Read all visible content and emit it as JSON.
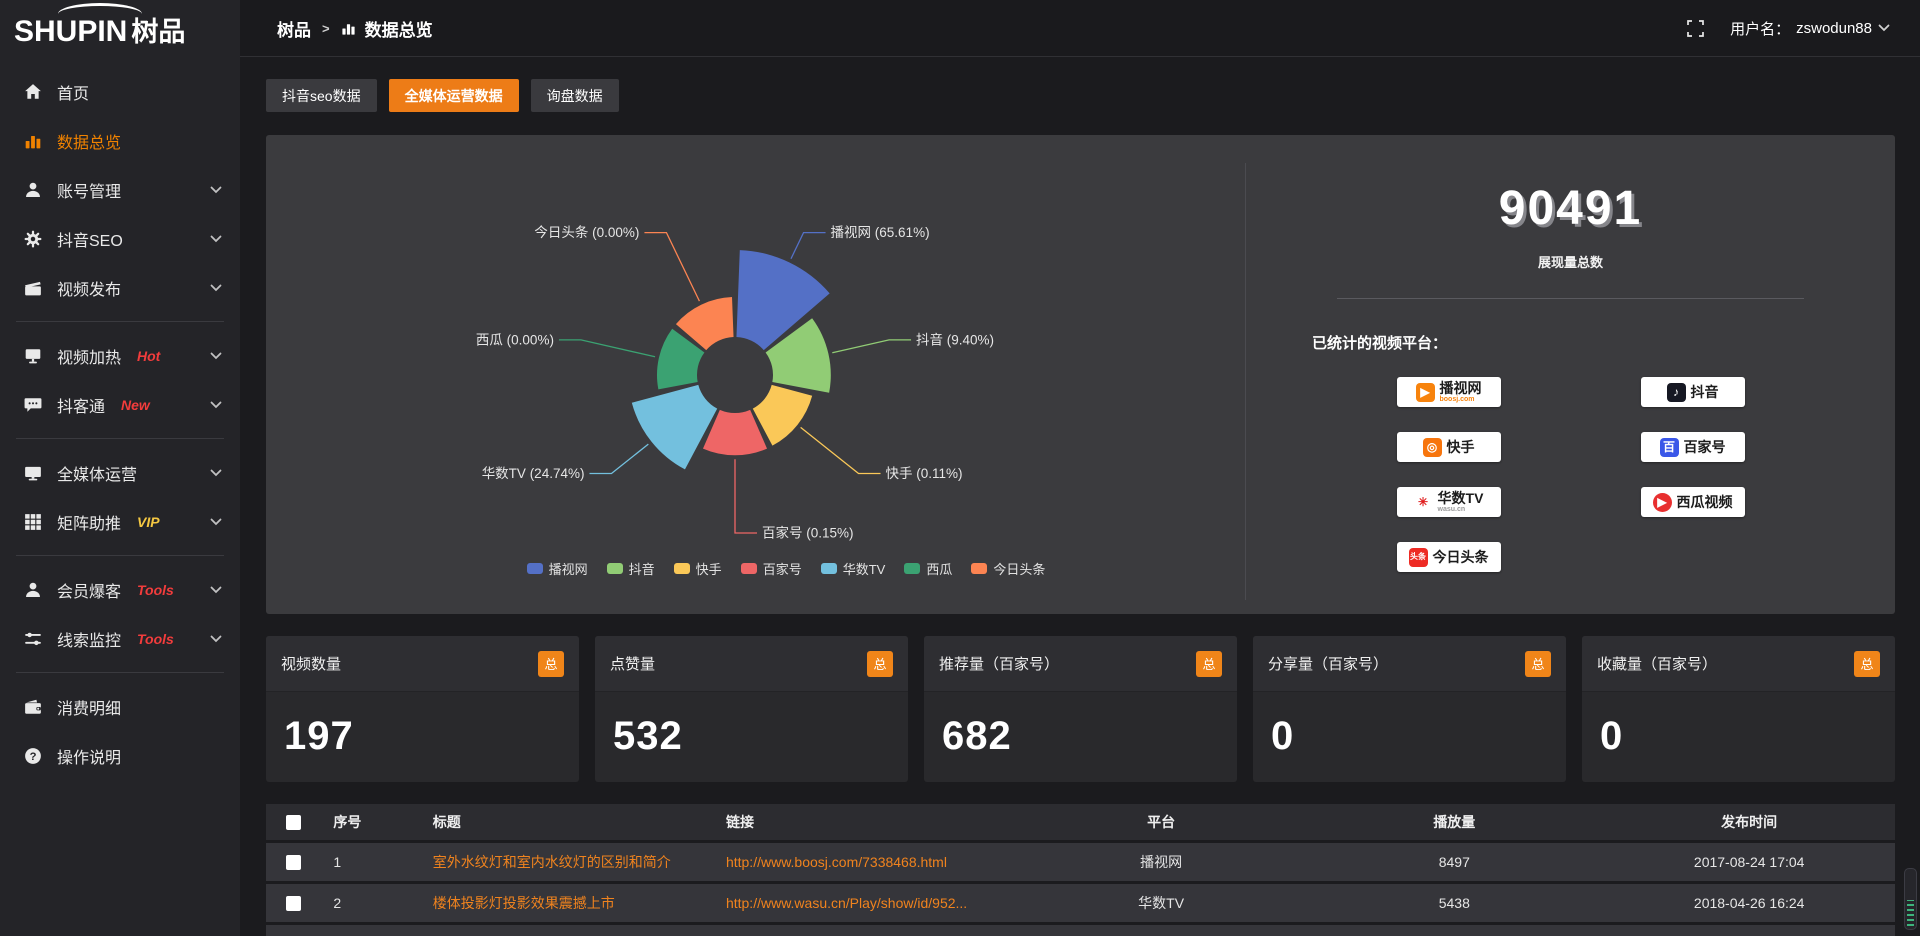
{
  "app": {
    "logo_en": "SHUPIN",
    "logo_cn": "树品",
    "username_label": "用户名：",
    "username": "zswodun88"
  },
  "breadcrumb": {
    "separator": ">",
    "items": [
      {
        "icon": "trend-square-icon",
        "label": "树品"
      },
      {
        "icon": "bar-chart-icon",
        "label": "数据总览"
      }
    ]
  },
  "sidebar": {
    "items": [
      {
        "id": "home",
        "icon": "home-icon",
        "label": "首页"
      },
      {
        "id": "data-overview",
        "icon": "bar-chart-icon",
        "label": "数据总览",
        "active": true
      },
      {
        "id": "account-management",
        "icon": "user-icon",
        "label": "账号管理",
        "chevron": true
      },
      {
        "id": "douyin-seo",
        "icon": "gear-icon",
        "label": "抖音SEO",
        "chevron": true
      },
      {
        "id": "video-publish",
        "icon": "video-icon",
        "label": "视频发布",
        "chevron": true,
        "divider_after": true
      },
      {
        "id": "video-heating",
        "icon": "display-icon",
        "label": "视频加热",
        "tag": "Hot",
        "tag_color": "#f23c3c",
        "chevron": true
      },
      {
        "id": "doketong",
        "icon": "chat-icon",
        "label": "抖客通",
        "tag": "New",
        "tag_color": "#f23c3c",
        "chevron": true,
        "divider_after": true
      },
      {
        "id": "media-operation",
        "icon": "monitor-icon",
        "label": "全媒体运营",
        "chevron": true
      },
      {
        "id": "matrix-boost",
        "icon": "grid-icon",
        "label": "矩阵助推",
        "tag": "VIP",
        "tag_color": "#f5c842",
        "chevron": true,
        "divider_after": true
      },
      {
        "id": "member-burst",
        "icon": "member-icon",
        "label": "会员爆客",
        "tag": "Tools",
        "tag_color": "#f23c3c",
        "chevron": true
      },
      {
        "id": "clue-monitor",
        "icon": "sliders-icon",
        "label": "线索监控",
        "tag": "Tools",
        "tag_color": "#f23c3c",
        "chevron": true,
        "divider_after": true
      },
      {
        "id": "consumption-detail",
        "icon": "wallet-icon",
        "label": "消费明细"
      },
      {
        "id": "operation-guide",
        "icon": "question-icon",
        "label": "操作说明"
      }
    ]
  },
  "tabs": [
    {
      "id": "douyin-seo-data",
      "label": "抖音seo数据",
      "active": false
    },
    {
      "id": "media-operation-data",
      "label": "全媒体运营数据",
      "active": true
    },
    {
      "id": "inquiry-data",
      "label": "询盘数据",
      "active": false
    }
  ],
  "chart_data": {
    "type": "pie",
    "variant": "nightingale-rose",
    "title": "",
    "legend_position": "bottom",
    "label_format": "{name} ({pct}%)",
    "items": [
      {
        "name": "播视网",
        "pct": 65.61,
        "pct_label": "65.61",
        "color": "#5470c6"
      },
      {
        "name": "抖音",
        "pct": 9.4,
        "pct_label": "9.40",
        "color": "#91cc75"
      },
      {
        "name": "快手",
        "pct": 0.11,
        "pct_label": "0.11",
        "color": "#fac858"
      },
      {
        "name": "百家号",
        "pct": 0.15,
        "pct_label": "0.15",
        "color": "#ee6666"
      },
      {
        "name": "华数TV",
        "pct": 24.74,
        "pct_label": "24.74",
        "color": "#73c0de"
      },
      {
        "name": "西瓜",
        "pct": 0.0,
        "pct_label": "0.00",
        "color": "#3ba272"
      },
      {
        "name": "今日头条",
        "pct": 0.0,
        "pct_label": "0.00",
        "color": "#fc8452"
      }
    ]
  },
  "summary": {
    "total_value": "90491",
    "total_label": "展现量总数",
    "platforms_label": "已统计的视频平台：",
    "platforms": [
      {
        "id": "boosj",
        "name": "播视网",
        "sub": "boosj.com",
        "sub_color": "#f7830d",
        "logo_bg": "#f7830d",
        "logo_color": "#ffffff",
        "logo_glyph": "▶"
      },
      {
        "id": "douyin",
        "name": "抖音",
        "logo_bg": "#161823",
        "logo_color": "#ffffff",
        "logo_glyph": "♪"
      },
      {
        "id": "kuaishou",
        "name": "快手",
        "logo_bg": "#f7750d",
        "logo_color": "#ffffff",
        "logo_glyph": "◎"
      },
      {
        "id": "baijiahao",
        "name": "百家号",
        "logo_bg": "#3a57e8",
        "logo_color": "#ffffff",
        "logo_glyph": "百"
      },
      {
        "id": "wasu",
        "name": "华数TV",
        "sub": "wasu.cn",
        "sub_color": "#9a9a9a",
        "logo_bg": "#ffffff",
        "logo_color": "#e02020",
        "logo_glyph": "✳"
      },
      {
        "id": "xigua",
        "name": "西瓜视频",
        "logo_bg": "#e82f2f",
        "logo_color": "#ffffff",
        "logo_glyph": "▶",
        "logo_round": true
      },
      {
        "id": "toutiao",
        "name": "今日头条",
        "logo_bg": "#ee2b24",
        "logo_color": "#ffffff",
        "logo_glyph": "头条",
        "logo_small": true
      }
    ]
  },
  "stat_cards": [
    {
      "label": "视频数量",
      "badge": "总",
      "value": "197"
    },
    {
      "label": "点赞量",
      "badge": "总",
      "value": "532"
    },
    {
      "label": "推荐量（百家号）",
      "badge": "总",
      "value": "682"
    },
    {
      "label": "分享量（百家号）",
      "badge": "总",
      "value": "0"
    },
    {
      "label": "收藏量（百家号）",
      "badge": "总",
      "value": "0"
    }
  ],
  "table": {
    "headers": [
      "序号",
      "标题",
      "链接",
      "平台",
      "播放量",
      "发布时间"
    ],
    "rows": [
      {
        "no": "1",
        "title": "室外水纹灯和室内水纹灯的区别和简介",
        "link": "http://www.boosj.com/7338468.html",
        "platform": "播视网",
        "plays": "8497",
        "time": "2017-08-24 17:04"
      },
      {
        "no": "2",
        "title": "楼体投影灯投影效果震撼上市",
        "link": "http://www.wasu.cn/Play/show/id/952...",
        "platform": "华数TV",
        "plays": "5438",
        "time": "2018-04-26 16:24"
      },
      {
        "no": "",
        "title": "",
        "link": "",
        "platform": "",
        "plays": "",
        "time": ""
      }
    ]
  },
  "colors": {
    "accent_orange": "#ed7c17",
    "link_orange": "#f0831e",
    "active_nav": "#f08200",
    "badge_orange": "#f08519",
    "panel_bg": "#3b3b3e",
    "page_bg": "#1b1b1e"
  }
}
